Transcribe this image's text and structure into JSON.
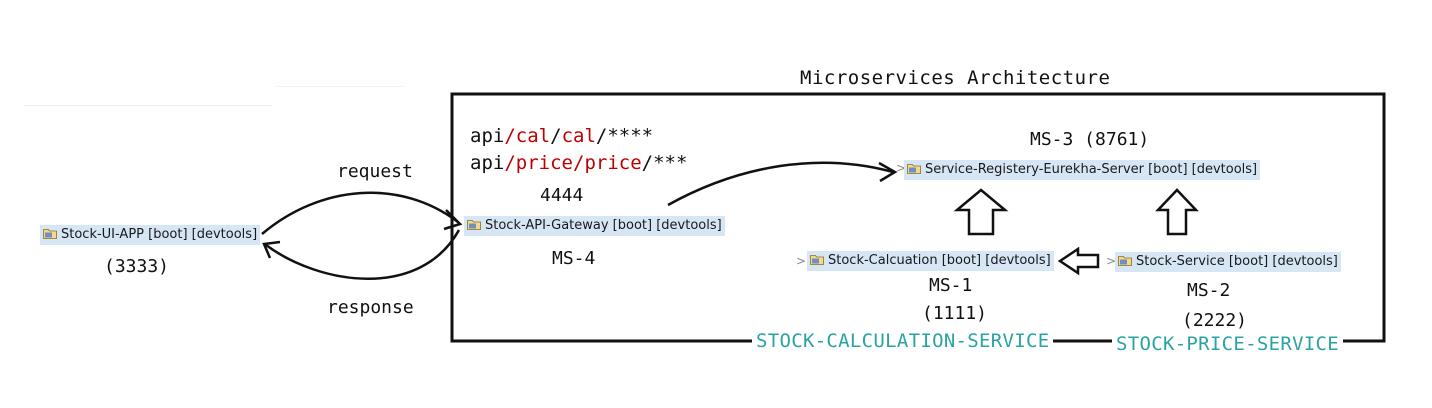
{
  "title": "Microservices Architecture",
  "api": {
    "line1": {
      "a": "api",
      "s1": "/",
      "b": "cal",
      "s2": "/",
      "c": "cal",
      "s3": "/****"
    },
    "line2": {
      "a": "api",
      "s1": "/",
      "b": "price",
      "s2": "/",
      "c": "price",
      "s3": "/***"
    }
  },
  "gateway_port": "4444",
  "arrows": {
    "request": "request",
    "response": "response"
  },
  "nodes": {
    "ui_app": "Stock-UI-APP [boot] [devtools]",
    "gateway": "Stock-API-Gateway [boot] [devtools]",
    "registry": "Service-Registery-Eurekha-Server [boot] [devtools]",
    "calculation": "Stock-Calcuation [boot] [devtools]",
    "stock_service": "Stock-Service [boot] [devtools]"
  },
  "labels": {
    "ui_port": "(3333)",
    "ms4": "MS-4",
    "ms3": "MS-3  (8761)",
    "ms1": "MS-1",
    "ms1_port": "(1111)",
    "ms2": "MS-2",
    "ms2_port": "(2222)"
  },
  "services": {
    "calculation": "STOCK-CALCULATION-SERVICE",
    "price": "STOCK-PRICE-SERVICE"
  },
  "chevron": ">",
  "colors": {
    "node_bg": "#d6e6f5",
    "red": "#c00000",
    "teal": "#2aa3a3",
    "line": "#111111"
  }
}
